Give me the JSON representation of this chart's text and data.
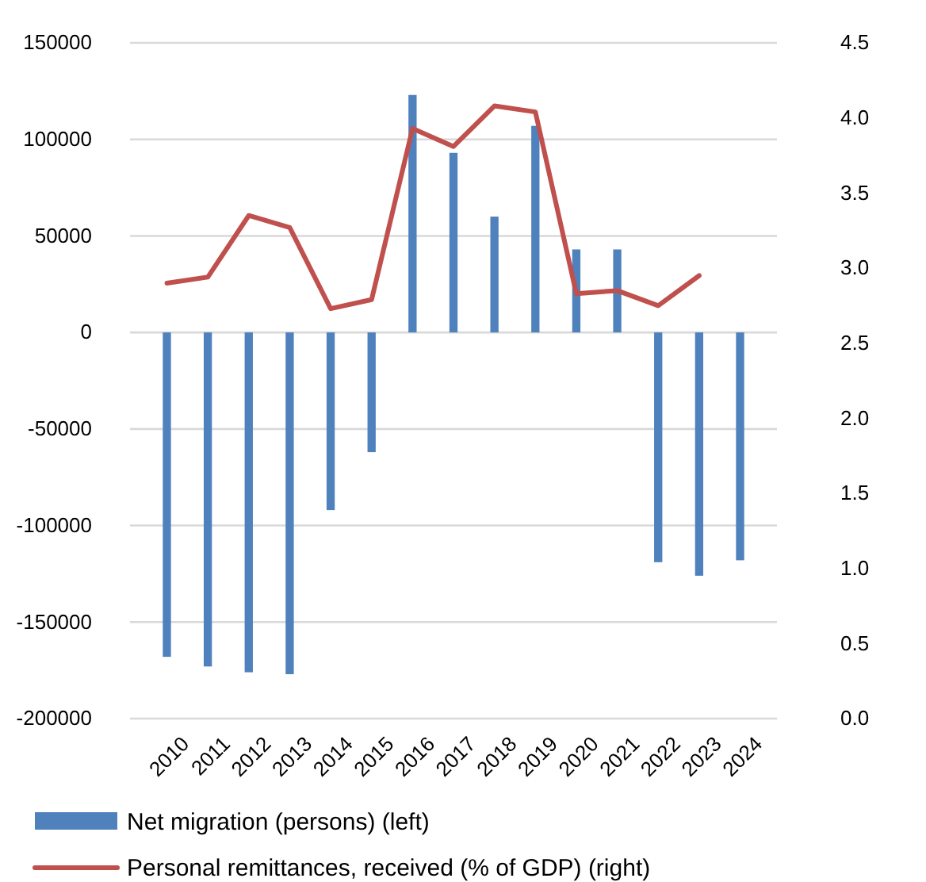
{
  "chart_data": {
    "type": "bar",
    "categories": [
      "2010",
      "2011",
      "2012",
      "2013",
      "2014",
      "2015",
      "2016",
      "2017",
      "2018",
      "2019",
      "2020",
      "2021",
      "2022",
      "2023",
      "2024"
    ],
    "series": [
      {
        "name": "Net migration (persons) (left)",
        "color": "#4f81bd",
        "values": [
          -168000,
          -173000,
          -176000,
          -177000,
          -92000,
          -62000,
          123000,
          93000,
          60000,
          107000,
          43000,
          43000,
          -119000,
          -126000,
          -118000
        ]
      },
      {
        "name": "Personal remittances, received (% of GDP) (right)",
        "type": "line",
        "axis": "y2",
        "color": "#c0504d",
        "values": [
          2.9,
          2.94,
          3.35,
          3.27,
          2.73,
          2.79,
          3.93,
          3.81,
          4.08,
          4.04,
          2.83,
          2.85,
          2.75,
          2.95,
          null
        ]
      }
    ],
    "ylim": [
      -200000,
      150000
    ],
    "yticks": [
      -200000,
      -150000,
      -100000,
      -50000,
      0,
      50000,
      100000,
      150000
    ],
    "y2lim": [
      0,
      4.5
    ],
    "y2ticks": [
      {
        "value": 0,
        "label": "0.0"
      },
      {
        "value": 0.5,
        "label": "0.5"
      },
      {
        "value": 1,
        "label": "1.0"
      },
      {
        "value": 1.5,
        "label": "1.5"
      },
      {
        "value": 2,
        "label": "2.0"
      },
      {
        "value": 2.5,
        "label": "2.5"
      },
      {
        "value": 3,
        "label": "3.0"
      },
      {
        "value": 3.5,
        "label": "3.5"
      },
      {
        "value": 4,
        "label": "4.0"
      },
      {
        "value": 4.5,
        "label": "4.5"
      }
    ],
    "grid": "y",
    "legend": "bottom"
  }
}
